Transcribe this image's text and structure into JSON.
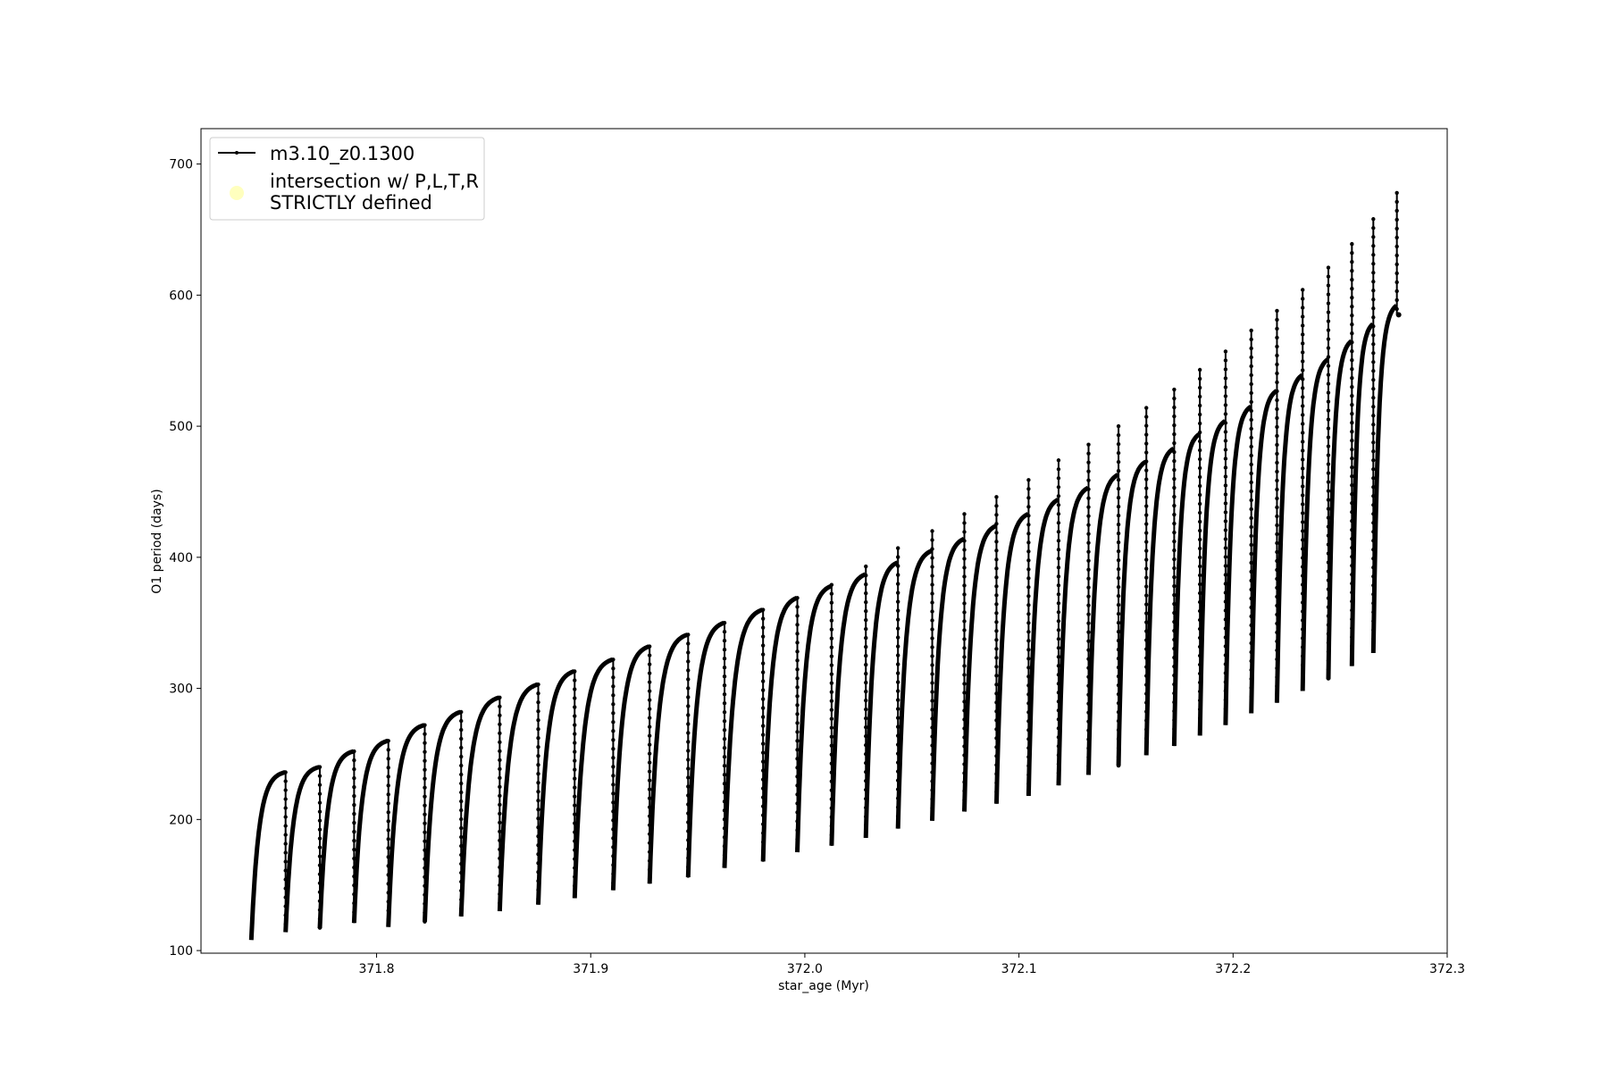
{
  "chart_data": {
    "type": "line",
    "title": "",
    "xlabel": "star_age (Myr)",
    "ylabel": "O1 period (days)",
    "xlim": [
      371.718,
      372.3
    ],
    "ylim": [
      98,
      727
    ],
    "xticks": [
      "371.8",
      "371.9",
      "372.0",
      "372.1",
      "372.2",
      "372.3"
    ],
    "yticks": [
      "100",
      "200",
      "300",
      "400",
      "500",
      "600",
      "700"
    ],
    "grid": false,
    "legend_position": "upper-left",
    "line_color": "#000000",
    "marker_color": "#ffffb3",
    "series": [
      {
        "name": "m3.10_z0.1300",
        "style": "line-with-dot-markers",
        "cycles": [
          {
            "start": 371.7415,
            "end": 371.7575,
            "low": 108,
            "high": 236,
            "spike": 196
          },
          {
            "start": 371.7575,
            "end": 371.7735,
            "low": 114,
            "high": 240,
            "spike": 0
          },
          {
            "start": 371.7735,
            "end": 371.7895,
            "low": 117,
            "high": 252,
            "spike": 0
          },
          {
            "start": 371.7895,
            "end": 371.8055,
            "low": 121,
            "high": 260,
            "spike": 0
          },
          {
            "start": 371.8055,
            "end": 371.8225,
            "low": 118,
            "high": 272,
            "spike": 0
          },
          {
            "start": 371.8225,
            "end": 371.8395,
            "low": 122,
            "high": 282,
            "spike": 0
          },
          {
            "start": 371.8395,
            "end": 371.8575,
            "low": 126,
            "high": 293,
            "spike": 0
          },
          {
            "start": 371.8575,
            "end": 371.8755,
            "low": 130,
            "high": 303,
            "spike": 0
          },
          {
            "start": 371.8755,
            "end": 371.8925,
            "low": 135,
            "high": 313,
            "spike": 0
          },
          {
            "start": 371.8925,
            "end": 371.9105,
            "low": 140,
            "high": 322,
            "spike": 0
          },
          {
            "start": 371.9105,
            "end": 371.9275,
            "low": 146,
            "high": 332,
            "spike": 0
          },
          {
            "start": 371.9275,
            "end": 371.9455,
            "low": 151,
            "high": 341,
            "spike": 0
          },
          {
            "start": 371.9455,
            "end": 371.9625,
            "low": 156,
            "high": 350,
            "spike": 0
          },
          {
            "start": 371.9625,
            "end": 371.9805,
            "low": 163,
            "high": 360,
            "spike": 0
          },
          {
            "start": 371.9805,
            "end": 371.9965,
            "low": 168,
            "high": 369,
            "spike": 366
          },
          {
            "start": 371.9965,
            "end": 372.0125,
            "low": 175,
            "high": 378,
            "spike": 379
          },
          {
            "start": 372.0125,
            "end": 372.0285,
            "low": 180,
            "high": 387,
            "spike": 393
          },
          {
            "start": 372.0285,
            "end": 372.0435,
            "low": 186,
            "high": 396,
            "spike": 407
          },
          {
            "start": 372.0435,
            "end": 372.0595,
            "low": 193,
            "high": 405,
            "spike": 420
          },
          {
            "start": 372.0595,
            "end": 372.0745,
            "low": 199,
            "high": 414,
            "spike": 433
          },
          {
            "start": 372.0745,
            "end": 372.0895,
            "low": 206,
            "high": 424,
            "spike": 446
          },
          {
            "start": 372.0895,
            "end": 372.1045,
            "low": 212,
            "high": 433,
            "spike": 459
          },
          {
            "start": 372.1045,
            "end": 372.1185,
            "low": 218,
            "high": 444,
            "spike": 474
          },
          {
            "start": 372.1185,
            "end": 372.1325,
            "low": 226,
            "high": 453,
            "spike": 486
          },
          {
            "start": 372.1325,
            "end": 372.1465,
            "low": 234,
            "high": 463,
            "spike": 500
          },
          {
            "start": 372.1465,
            "end": 372.1595,
            "low": 241,
            "high": 473,
            "spike": 514
          },
          {
            "start": 372.1595,
            "end": 372.1725,
            "low": 249,
            "high": 483,
            "spike": 528
          },
          {
            "start": 372.1725,
            "end": 372.1845,
            "low": 256,
            "high": 494,
            "spike": 543
          },
          {
            "start": 372.1845,
            "end": 372.1965,
            "low": 264,
            "high": 504,
            "spike": 557
          },
          {
            "start": 372.1965,
            "end": 372.2085,
            "low": 272,
            "high": 515,
            "spike": 573
          },
          {
            "start": 372.2085,
            "end": 372.2205,
            "low": 281,
            "high": 527,
            "spike": 588
          },
          {
            "start": 372.2205,
            "end": 372.2325,
            "low": 289,
            "high": 539,
            "spike": 604
          },
          {
            "start": 372.2325,
            "end": 372.2445,
            "low": 298,
            "high": 551,
            "spike": 621
          },
          {
            "start": 372.2445,
            "end": 372.2555,
            "low": 307,
            "high": 565,
            "spike": 639
          },
          {
            "start": 372.2555,
            "end": 372.2655,
            "low": 317,
            "high": 578,
            "spike": 658
          },
          {
            "start": 372.2655,
            "end": 372.2765,
            "low": 327,
            "high": 592,
            "spike": 678
          }
        ],
        "final_value": 585
      },
      {
        "name": "intersection w/ P,L,T,R STRICTLY defined",
        "style": "scatter",
        "points": []
      }
    ]
  }
}
